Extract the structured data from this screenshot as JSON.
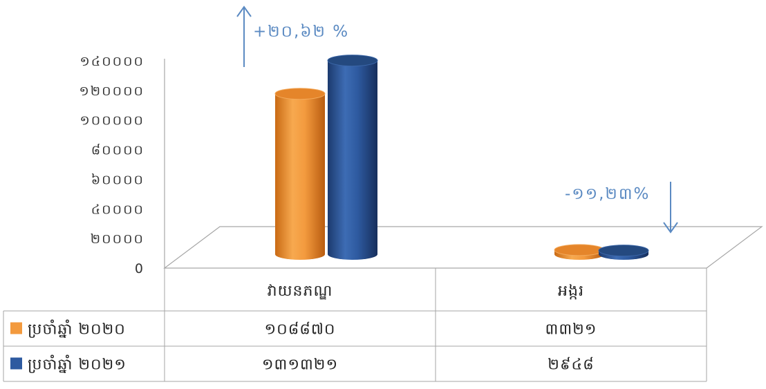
{
  "chart_data": {
    "type": "bar",
    "categories": [
      "វាយនភណ្ឌ",
      "អង្ករ"
    ],
    "series": [
      {
        "name": "ប្រចាំឆ្នាំ ២០២០",
        "color": "#f39a3e",
        "values": [
          108870,
          3321
        ],
        "value_labels": [
          "១០៨៨៧០",
          "៣៣២១"
        ]
      },
      {
        "name": "ប្រចាំឆ្នាំ ២០២១",
        "color": "#2e5aa0",
        "values": [
          131321,
          2948
        ],
        "value_labels": [
          "១៣១៣២១",
          "២៩៤៨"
        ]
      }
    ],
    "ylim": [
      0,
      140000
    ],
    "y_ticks": [
      0,
      20000,
      40000,
      60000,
      80000,
      100000,
      120000,
      140000
    ],
    "y_tick_labels": [
      "0",
      "២០០០០",
      "៤០០០០",
      "៦០០០០",
      "៨០០០០",
      "១០០០០០",
      "១២០០០០",
      "១៤០០០០"
    ],
    "annotations": [
      {
        "text": "+២០,៦២ %",
        "direction": "up",
        "category": "វាយនភណ្ឌ"
      },
      {
        "text": "-១១,២៣%",
        "direction": "down",
        "category": "អង្ករ"
      }
    ],
    "legend": "data-table",
    "grid": false
  }
}
